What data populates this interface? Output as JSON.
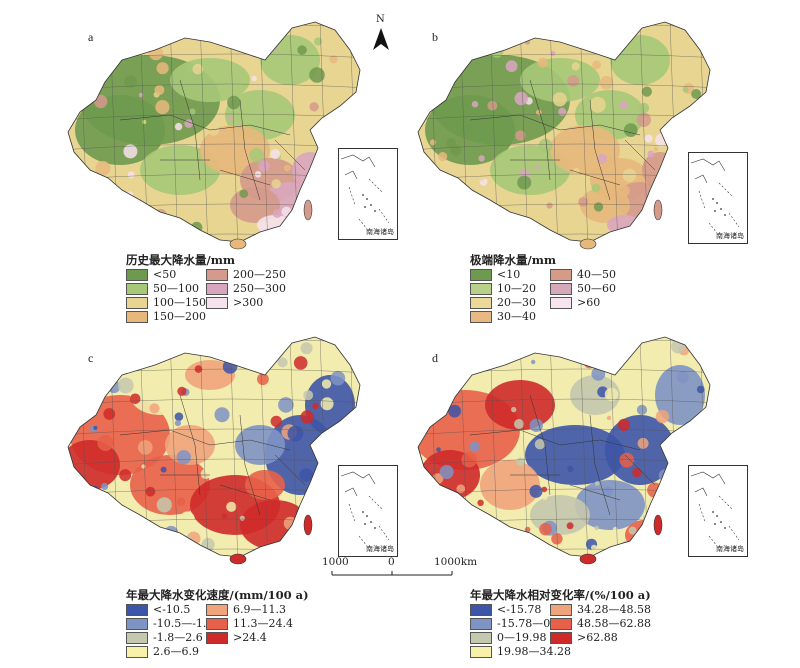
{
  "panels": [
    {
      "id": "a",
      "letter": "a",
      "palette": [
        "#6e9a4f",
        "#a6c878",
        "#e8d592",
        "#e7b87c",
        "#d49a8c",
        "#d9a6bf",
        "#f6e2ec"
      ],
      "legend": {
        "title": "历史最大降水量/mm",
        "items": [
          "<50",
          "50—100",
          "100—150",
          "150—200",
          "200—250",
          "250—300",
          ">300"
        ],
        "colors": [
          "#6e9a4f",
          "#a6c878",
          "#e8d592",
          "#e7b87c",
          "#d49a8c",
          "#d9a6bf",
          "#f6e2ec"
        ]
      }
    },
    {
      "id": "b",
      "letter": "b",
      "palette": [
        "#6e9a4f",
        "#a6c878",
        "#e8d592",
        "#e7b87c",
        "#d49a8c",
        "#d9a6bf",
        "#f6e2ec"
      ],
      "legend": {
        "title": "极端降水量/mm",
        "items": [
          "<10",
          "10—20",
          "20—30",
          "30—40",
          "40—50",
          "50—60",
          ">60"
        ],
        "colors": [
          "#6e9a4f",
          "#b9d08a",
          "#ecd99a",
          "#e8b983",
          "#d79a87",
          "#d6a9b8",
          "#f7e4ee"
        ]
      }
    },
    {
      "id": "c",
      "letter": "c",
      "palette": [
        "#3d55a8",
        "#7f93c4",
        "#c4c8ae",
        "#f2ecae",
        "#f0a47c",
        "#e8604a",
        "#cf2a2a"
      ],
      "legend": {
        "title": "年最大降水变化速度/(mm/100 a)",
        "items": [
          "<-10.5",
          "-10.5—-1.8",
          "-1.8—2.6",
          "2.6—6.9",
          "6.9—11.3",
          "11.3—24.4",
          ">24.4"
        ],
        "colors": [
          "#3d55a8",
          "#7f93c4",
          "#c4c8ae",
          "#f7f2a8",
          "#f0a47c",
          "#e8604a",
          "#cf2a2a"
        ]
      }
    },
    {
      "id": "d",
      "letter": "d",
      "palette": [
        "#3d55a8",
        "#7f93c4",
        "#c4c8ae",
        "#f2ecae",
        "#f0a47c",
        "#e8604a",
        "#cf2a2a"
      ],
      "legend": {
        "title": "年最大降水相对变化率/(%/100 a)",
        "items": [
          "<-15.78",
          "-15.78—0",
          "0—19.98",
          "19.98—34.28",
          "34.28—48.58",
          "48.58—62.88",
          ">62.88"
        ],
        "colors": [
          "#3d55a8",
          "#7f93c4",
          "#c4c8ae",
          "#f7f2a8",
          "#f0a47c",
          "#e8604a",
          "#cf2a2a"
        ]
      }
    }
  ],
  "inset_label": "南海诸岛",
  "north_label": "N",
  "scale": {
    "left": "1000",
    "mid": "0",
    "right": "1000km"
  }
}
